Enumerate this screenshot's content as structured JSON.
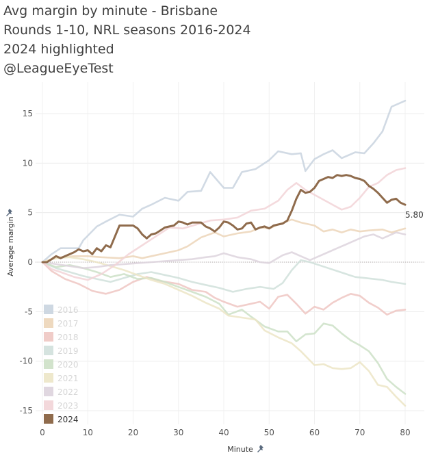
{
  "title_lines": [
    "Avg margin by minute - Brisbane",
    "Rounds 1-10, NRL seasons 2016-2024",
    "2024 highlighted",
    "@LeagueEyeTest"
  ],
  "chart_data": {
    "type": "line",
    "xlabel": "Minute",
    "ylabel": "Average margin",
    "xlim": [
      0,
      82
    ],
    "ylim": [
      -16.2,
      17.2
    ],
    "xticks": [
      0,
      10,
      20,
      30,
      40,
      50,
      60,
      70,
      80
    ],
    "yticks": [
      -15,
      -10,
      -5,
      0,
      5,
      10,
      15
    ],
    "grid": true,
    "zero_line": "dotted",
    "legend_placement": "bottom-left",
    "highlighted_series": "2024",
    "end_label": "5.80",
    "series": [
      {
        "name": "2016",
        "color": "#c9d4df",
        "x": [
          0,
          2,
          4,
          7,
          8,
          9,
          12,
          14,
          17,
          20,
          22,
          24,
          27,
          30,
          32,
          35,
          37,
          40,
          42,
          44,
          47,
          50,
          52,
          55,
          57,
          58,
          60,
          62,
          64,
          66,
          69,
          71,
          73,
          75,
          77,
          80
        ],
        "y": [
          0,
          0.8,
          1.4,
          1.4,
          1.4,
          2.2,
          3.6,
          4.1,
          4.8,
          4.6,
          5.4,
          5.8,
          6.5,
          6.2,
          7.1,
          7.2,
          9.1,
          7.5,
          7.5,
          9.1,
          9.4,
          10.3,
          11.2,
          10.9,
          11.0,
          9.2,
          10.4,
          10.9,
          11.3,
          10.5,
          11.1,
          11.0,
          12.0,
          13.2,
          15.7,
          16.3
        ]
      },
      {
        "name": "2017",
        "color": "#ecd5b8",
        "x": [
          0,
          2,
          4,
          7,
          10,
          13,
          17,
          20,
          22,
          24,
          27,
          30,
          32,
          35,
          38,
          40,
          43,
          46,
          48,
          50,
          52,
          55,
          57,
          60,
          62,
          64,
          66,
          68,
          70,
          72,
          75,
          77,
          80
        ],
        "y": [
          0,
          0.3,
          0.5,
          0.6,
          0.6,
          0.5,
          0.4,
          0.6,
          0.4,
          0.6,
          0.9,
          1.2,
          1.6,
          2.5,
          3.0,
          2.6,
          2.9,
          3.1,
          3.5,
          3.4,
          3.8,
          4.3,
          4.0,
          3.7,
          3.1,
          3.3,
          3.0,
          3.3,
          3.1,
          3.2,
          3.3,
          3.0,
          3.4
        ]
      },
      {
        "name": "2018",
        "color": "#eec6c2",
        "x": [
          0,
          2,
          5,
          8,
          11,
          14,
          17,
          20,
          23,
          26,
          30,
          33,
          36,
          38,
          40,
          43,
          46,
          48,
          50,
          52,
          54,
          56,
          58,
          60,
          62,
          64,
          66,
          68,
          70,
          72,
          74,
          76,
          78,
          80
        ],
        "y": [
          0,
          -0.9,
          -1.7,
          -2.2,
          -2.9,
          -3.2,
          -2.8,
          -2.0,
          -1.5,
          -1.9,
          -2.2,
          -2.8,
          -3.0,
          -3.6,
          -4.0,
          -4.5,
          -4.2,
          -4.0,
          -4.7,
          -3.5,
          -3.3,
          -4.2,
          -5.2,
          -4.5,
          -4.8,
          -4.1,
          -3.6,
          -3.2,
          -3.4,
          -4.1,
          -4.6,
          -5.3,
          -4.9,
          -4.8
        ]
      },
      {
        "name": "2019",
        "color": "#d0e0db",
        "x": [
          0,
          3,
          6,
          9,
          12,
          15,
          18,
          21,
          24,
          27,
          30,
          33,
          36,
          39,
          42,
          45,
          48,
          51,
          53,
          55,
          57,
          59,
          61,
          63,
          65,
          67,
          69,
          71,
          73,
          75,
          77,
          80
        ],
        "y": [
          0,
          -0.6,
          -1.0,
          -1.4,
          -1.7,
          -2.0,
          -1.6,
          -1.2,
          -1.0,
          -1.3,
          -1.6,
          -2.0,
          -2.3,
          -2.6,
          -3.0,
          -2.7,
          -2.5,
          -2.7,
          -2.1,
          -0.8,
          0.2,
          0.0,
          -0.3,
          -0.6,
          -0.9,
          -1.2,
          -1.5,
          -1.6,
          -1.7,
          -1.8,
          -2.0,
          -2.2
        ]
      },
      {
        "name": "2020",
        "color": "#cde0c7",
        "x": [
          0,
          3,
          6,
          9,
          12,
          15,
          18,
          21,
          24,
          27,
          30,
          33,
          36,
          39,
          41,
          44,
          46,
          49,
          52,
          54,
          56,
          58,
          60,
          62,
          64,
          66,
          68,
          70,
          72,
          74,
          76,
          78,
          80
        ],
        "y": [
          0,
          -0.5,
          -0.3,
          -0.6,
          -1.0,
          -1.5,
          -1.2,
          -1.7,
          -1.6,
          -2.0,
          -2.5,
          -3.0,
          -3.5,
          -4.2,
          -5.3,
          -4.8,
          -5.5,
          -6.5,
          -7.0,
          -7.0,
          -8.0,
          -7.3,
          -7.2,
          -6.2,
          -6.4,
          -7.2,
          -7.9,
          -8.4,
          -9.0,
          -10.2,
          -11.8,
          -12.6,
          -13.3
        ]
      },
      {
        "name": "2021",
        "color": "#ece5c6",
        "x": [
          0,
          3,
          6,
          9,
          12,
          15,
          18,
          21,
          24,
          27,
          30,
          33,
          36,
          39,
          41,
          44,
          47,
          49,
          52,
          55,
          57,
          60,
          62,
          64,
          66,
          68,
          70,
          72,
          74,
          76,
          78,
          80
        ],
        "y": [
          0,
          0.4,
          0.5,
          0.3,
          0.0,
          -0.4,
          -0.8,
          -1.3,
          -1.8,
          -2.2,
          -2.8,
          -3.4,
          -4.1,
          -4.7,
          -5.4,
          -5.6,
          -5.8,
          -6.9,
          -7.6,
          -8.2,
          -9.0,
          -10.4,
          -10.3,
          -10.7,
          -10.8,
          -10.7,
          -10.1,
          -11.0,
          -12.4,
          -12.6,
          -13.6,
          -14.5
        ]
      },
      {
        "name": "2022",
        "color": "#ddd3dd",
        "x": [
          0,
          3,
          6,
          9,
          12,
          15,
          18,
          21,
          24,
          27,
          30,
          33,
          36,
          38,
          40,
          43,
          46,
          48,
          50,
          53,
          55,
          57,
          59,
          61,
          63,
          65,
          67,
          69,
          71,
          73,
          75,
          78,
          80
        ],
        "y": [
          0,
          -0.2,
          -0.4,
          -0.6,
          -0.5,
          -0.3,
          -0.2,
          -0.1,
          0.0,
          0.1,
          0.2,
          0.3,
          0.5,
          0.6,
          0.9,
          0.5,
          0.3,
          0.0,
          -0.1,
          0.7,
          1.0,
          0.6,
          0.2,
          0.6,
          1.0,
          1.4,
          1.8,
          2.2,
          2.6,
          2.8,
          2.4,
          3.0,
          2.8
        ]
      },
      {
        "name": "2023",
        "color": "#f2d4d7",
        "x": [
          0,
          2,
          4,
          7,
          10,
          13,
          16,
          19,
          22,
          25,
          28,
          31,
          34,
          37,
          40,
          43,
          46,
          49,
          52,
          54,
          56,
          58,
          60,
          62,
          64,
          66,
          68,
          70,
          72,
          74,
          76,
          78,
          80
        ],
        "y": [
          0,
          -0.7,
          -1.0,
          -1.5,
          -1.8,
          -1.2,
          -0.3,
          0.8,
          1.7,
          2.6,
          3.5,
          3.4,
          3.8,
          4.2,
          4.3,
          4.5,
          5.2,
          5.4,
          6.2,
          7.3,
          8.0,
          7.3,
          6.8,
          6.3,
          5.8,
          5.3,
          5.6,
          6.5,
          7.6,
          8.0,
          8.8,
          9.3,
          9.5
        ]
      },
      {
        "name": "2024",
        "color": "#8f6b4c",
        "x": [
          0,
          1,
          2,
          3,
          4,
          5,
          6,
          7,
          8,
          9,
          10,
          11,
          12,
          13,
          14,
          15,
          16,
          17,
          18,
          19,
          20,
          21,
          22,
          23,
          24,
          25,
          26,
          27,
          28,
          29,
          30,
          31,
          32,
          33,
          34,
          35,
          36,
          37,
          38,
          39,
          40,
          41,
          42,
          43,
          44,
          45,
          46,
          47,
          48,
          49,
          50,
          51,
          52,
          53,
          54,
          55,
          56,
          57,
          58,
          59,
          60,
          61,
          62,
          63,
          64,
          65,
          66,
          67,
          68,
          69,
          70,
          71,
          72,
          73,
          74,
          75,
          76,
          77,
          78,
          79,
          80
        ],
        "y": [
          0,
          0.0,
          0.3,
          0.6,
          0.4,
          0.6,
          0.8,
          1.0,
          1.3,
          1.1,
          1.2,
          0.8,
          1.4,
          1.1,
          1.7,
          1.5,
          2.6,
          3.7,
          3.7,
          3.7,
          3.7,
          3.4,
          2.8,
          2.4,
          2.8,
          2.9,
          3.2,
          3.5,
          3.6,
          3.7,
          4.1,
          4.0,
          3.8,
          4.0,
          4.0,
          4.0,
          3.6,
          3.4,
          3.1,
          3.5,
          4.1,
          4.0,
          3.7,
          3.3,
          3.4,
          3.9,
          4.0,
          3.3,
          3.5,
          3.6,
          3.4,
          3.7,
          3.8,
          3.9,
          4.2,
          5.2,
          6.4,
          7.3,
          7.0,
          7.1,
          7.5,
          8.2,
          8.4,
          8.6,
          8.5,
          8.8,
          8.7,
          8.8,
          8.7,
          8.5,
          8.4,
          8.2,
          7.7,
          7.4,
          7.0,
          6.5,
          6.0,
          6.3,
          6.4,
          6.0,
          5.8
        ]
      }
    ]
  }
}
